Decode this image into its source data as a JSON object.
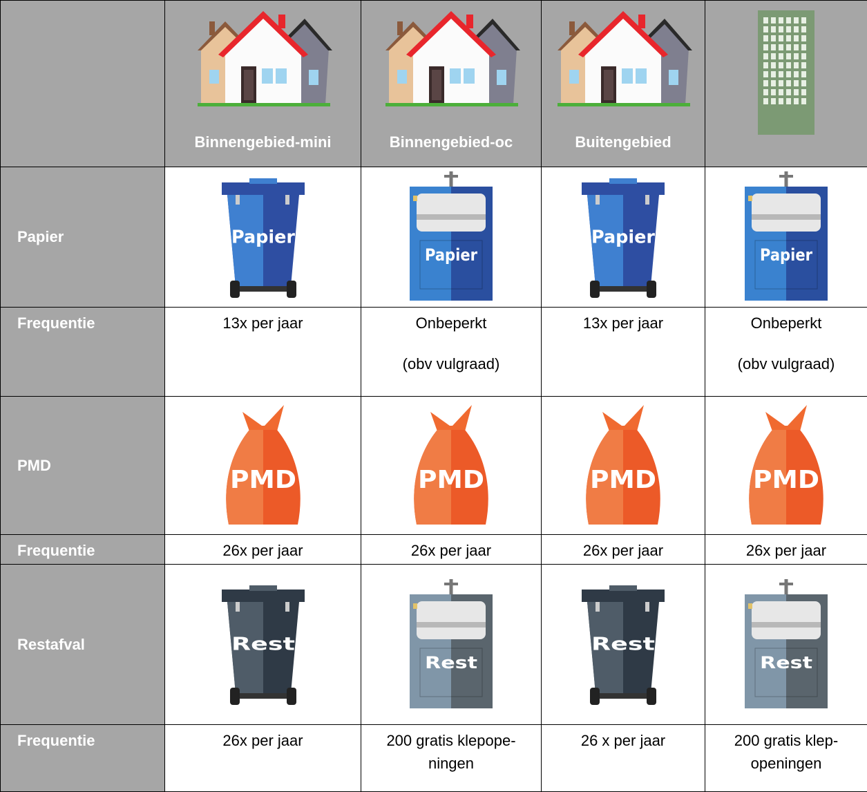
{
  "table": {
    "columns": [
      "Binnengebied-mini",
      "Binnengebied-oc",
      "Buitengebied"
    ],
    "sections": [
      {
        "label": "Papier",
        "icon_texts": [
          "Papier",
          "Papier",
          "Papier",
          "Papier"
        ],
        "frequency_label": "Frequentie",
        "frequencies": [
          [
            "13x per jaar"
          ],
          [
            "Onbeperkt",
            "(obv vulgraad)"
          ],
          [
            "13x per jaar"
          ],
          [
            "Onbeperkt",
            "(obv vulgraad)"
          ]
        ]
      },
      {
        "label": "PMD",
        "icon_texts": [
          "PMD",
          "PMD",
          "PMD",
          "PMD"
        ],
        "frequency_label": "Frequentie",
        "frequencies": [
          [
            "26x per jaar"
          ],
          [
            "26x per jaar"
          ],
          [
            "26x per jaar"
          ],
          [
            "26x per jaar"
          ]
        ]
      },
      {
        "label": "Restafval",
        "icon_texts": [
          "Rest",
          "Rest",
          "Rest",
          "Rest"
        ],
        "frequency_label": "Frequentie",
        "frequencies": [
          [
            "26x per jaar"
          ],
          [
            "200 gratis klepope-",
            "ningen"
          ],
          [
            "26 x per jaar"
          ],
          [
            "200 gratis klep-",
            "openingen"
          ]
        ]
      }
    ]
  }
}
